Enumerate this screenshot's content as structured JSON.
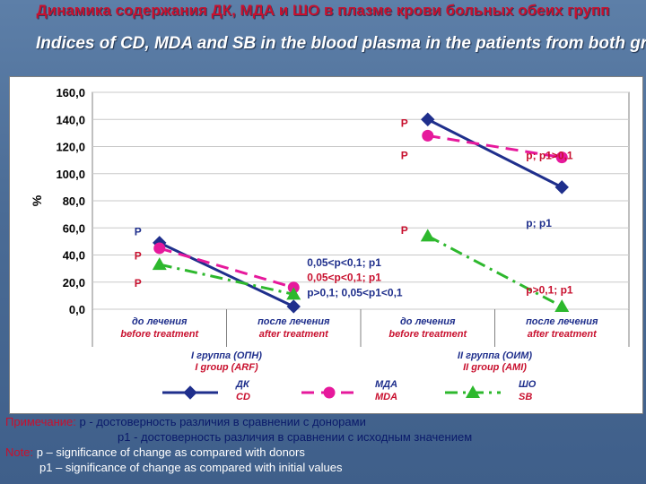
{
  "slide": {
    "title_ru": "Динамика содержания ДК, МДА и ШО в плазме крови больных обеих групп",
    "title_en": "Indices of CD, MDA and SB in the blood plasma in the patients from both groups"
  },
  "colors": {
    "dk": "#1f2f8c",
    "mda": "#e6199c",
    "sb": "#2db82d",
    "title_red": "#c8102e",
    "label_red": "#c8102e",
    "label_navy": "#1f2f8c"
  },
  "chart_data": {
    "type": "line",
    "ylabel": "%",
    "ylim": [
      0,
      160
    ],
    "yticks": [
      "0,0",
      "20,0",
      "40,0",
      "60,0",
      "80,0",
      "100,0",
      "120,0",
      "140,0",
      "160,0"
    ],
    "grid": true,
    "categories": [
      {
        "ru": "до лечения",
        "en": "before treatment"
      },
      {
        "ru": "после лечения",
        "en": "after treatment"
      },
      {
        "ru": "до лечения",
        "en": "before treatment"
      },
      {
        "ru": "после лечения",
        "en": "after treatment"
      }
    ],
    "groups": [
      {
        "ru": "I группа (ОПН)",
        "en": "I group (ARF)"
      },
      {
        "ru": "II группа (ОИМ)",
        "en": "II group (AMI)"
      }
    ],
    "series": [
      {
        "key": "dk",
        "name_ru": "ДК",
        "name_en": "CD",
        "marker": "diamond",
        "dash": "solid",
        "values": [
          49,
          2,
          140,
          90
        ]
      },
      {
        "key": "mda",
        "name_ru": "МДА",
        "name_en": "MDA",
        "marker": "circle",
        "dash": "dash",
        "values": [
          45,
          16,
          128,
          112
        ]
      },
      {
        "key": "sb",
        "name_ru": "ШО",
        "name_en": "SB",
        "marker": "triangle",
        "dash": "dashdot",
        "values": [
          33,
          11,
          54,
          2
        ]
      }
    ],
    "annotations": [
      {
        "text": "P",
        "x": 0,
        "y": 58,
        "color": "navy"
      },
      {
        "text": "P",
        "x": 0,
        "y": 40,
        "color": "red"
      },
      {
        "text": "P",
        "x": 0,
        "y": 20,
        "color": "red"
      },
      {
        "text": "0,05<p<0,1; p1",
        "x": 1.6,
        "y": 35,
        "color": "navy"
      },
      {
        "text": "0,05<p<0,1; p1",
        "x": 1.6,
        "y": 24,
        "color": "red"
      },
      {
        "text": "p>0,1; 0,05<p1<0,1",
        "x": 1.6,
        "y": 13,
        "color": "navy"
      },
      {
        "text": "P",
        "x": 2,
        "y": 138,
        "color": "red"
      },
      {
        "text": "P",
        "x": 2,
        "y": 114,
        "color": "red"
      },
      {
        "text": "P",
        "x": 2,
        "y": 59,
        "color": "red"
      },
      {
        "text": "p; p1>0,1",
        "x": 3,
        "y": 114,
        "color": "red"
      },
      {
        "text": "p; p1",
        "x": 3,
        "y": 64,
        "color": "navy"
      },
      {
        "text": "p>0,1; p1",
        "x": 3,
        "y": 15,
        "color": "red"
      }
    ]
  },
  "note": {
    "ru_label": "Примечание:",
    "ru_line1": " р - достоверность различия в сравнении с донорами",
    "ru_line2": "р1 - достоверность различия в сравнении с исходным значением",
    "en_label": "Note:",
    "en_line1": " p – significance of change as compared with donors",
    "en_line2": "p1 – significance of change as compared with initial values"
  }
}
